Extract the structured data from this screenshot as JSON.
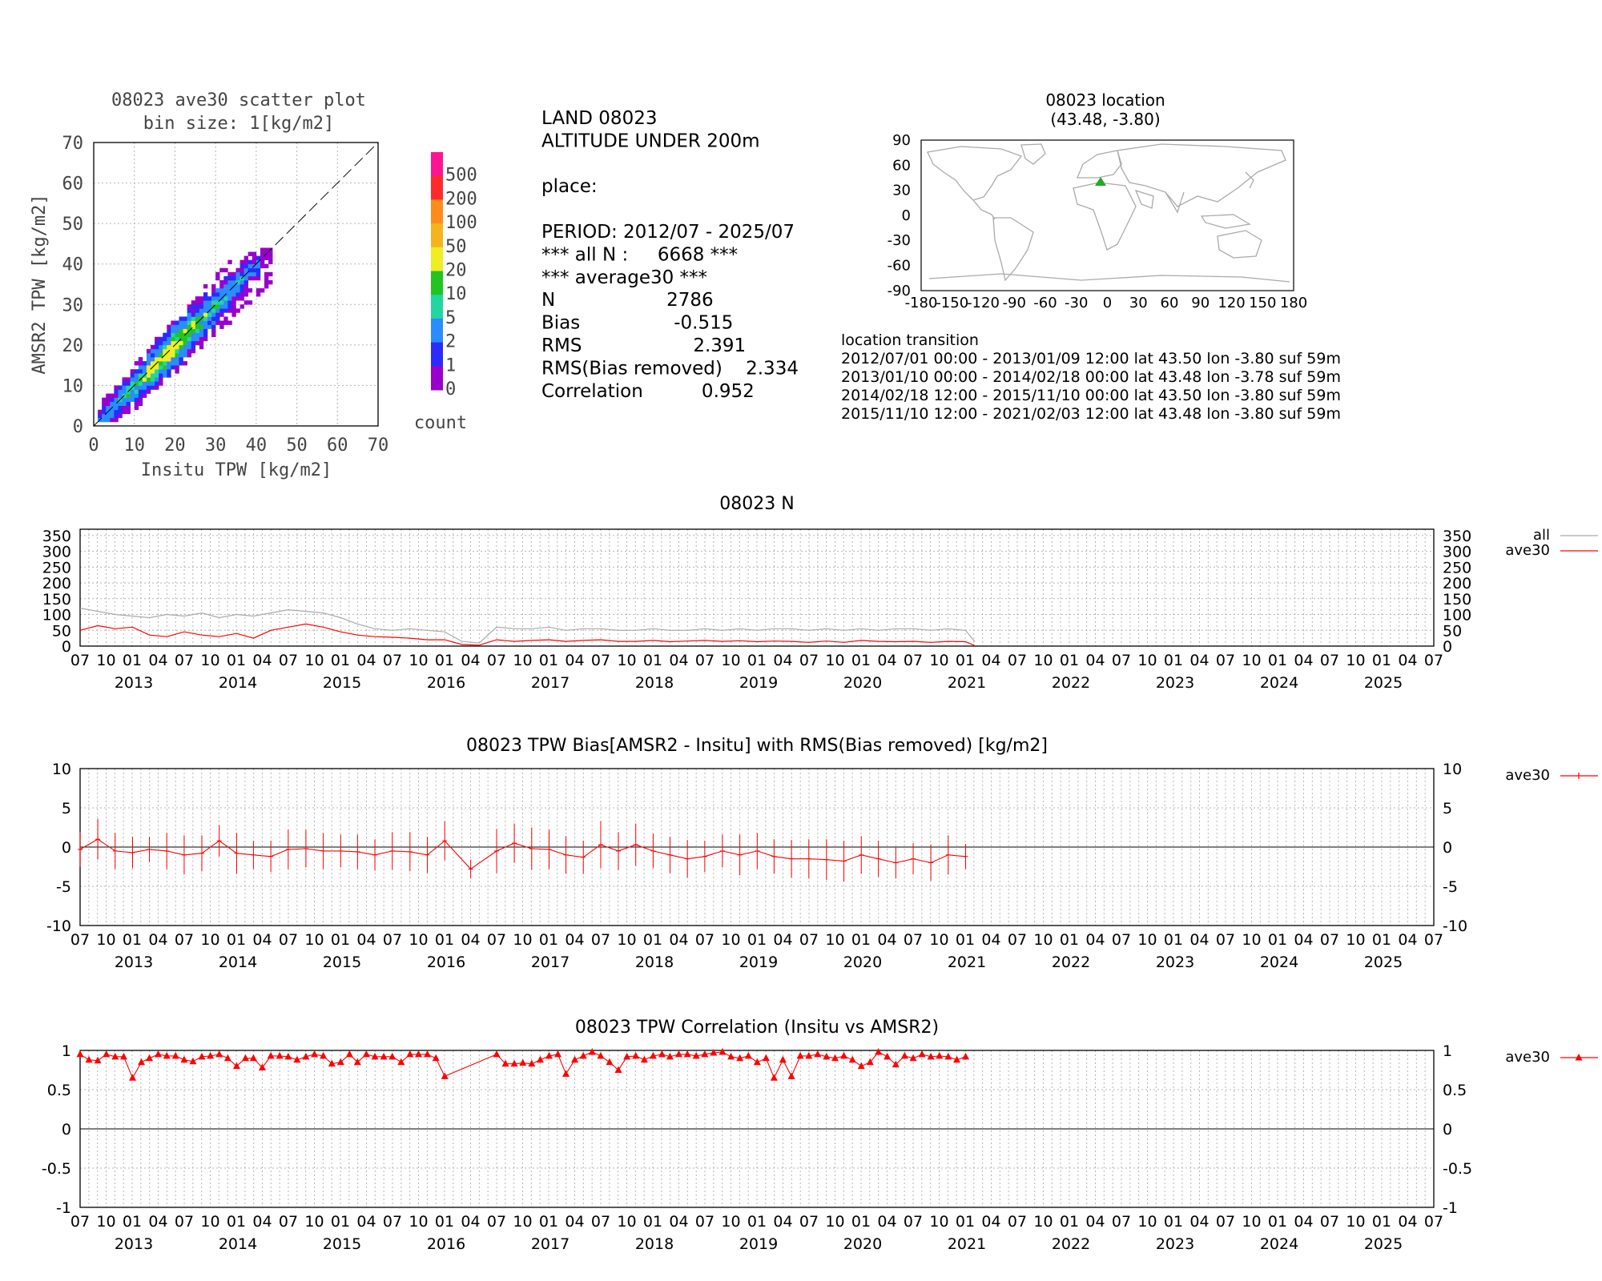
{
  "scatter": {
    "title": [
      "08023 ave30 scatter plot",
      "bin size: 1[kg/m2]"
    ],
    "xlabel": "Insitu TPW [kg/m2]",
    "ylabel": "AMSR2 TPW [kg/m2]",
    "ticks": [
      "0",
      "10",
      "20",
      "30",
      "40",
      "50",
      "60",
      "70"
    ],
    "colorbar": {
      "labels": [
        "500",
        "200",
        "100",
        "50",
        "20",
        "10",
        "5",
        "2",
        "1",
        "0"
      ],
      "colors": [
        "#ff1493",
        "#ff2b2b",
        "#ff8c1a",
        "#f5b41e",
        "#eeee22",
        "#22c422",
        "#22d6a0",
        "#2a8cff",
        "#2b2bff",
        "#9900cc"
      ],
      "title": "count"
    }
  },
  "stats": {
    "lines": [
      "LAND 08023",
      "ALTITUDE UNDER 200m",
      "",
      "place:",
      "",
      "PERIOD: 2012/07 - 2025/07",
      "*** all N :     6668 ***",
      "*** average30 ***",
      "N                   2786",
      "Bias                -0.515",
      "RMS                   2.391",
      "RMS(Bias removed)    2.334",
      "Correlation          0.952"
    ]
  },
  "map": {
    "title": [
      "08023 location",
      "(43.48, -3.80)"
    ],
    "yticks": [
      "90",
      "60",
      "30",
      "0",
      "-30",
      "-60",
      "-90"
    ],
    "xticks": [
      "-180",
      "-150",
      "-120",
      "-90",
      "-60",
      "-30",
      "0",
      "30",
      "60",
      "90",
      "120",
      "150",
      "180"
    ],
    "marker_color": "#22aa22",
    "lat": 43.48,
    "lon": -3.8
  },
  "transition": {
    "title": "location transition",
    "lines": [
      "2012/07/01 00:00 - 2013/01/09 12:00 lat 43.50 lon -3.80 suf 59m",
      "2013/01/10 00:00 - 2014/02/18 00:00 lat 43.48 lon -3.78 suf 59m",
      "2014/02/18 12:00 - 2015/11/10 00:00 lat 43.50 lon -3.80 suf 59m",
      "2015/11/10 12:00 - 2021/02/03 12:00 lat 43.48 lon -3.80 suf 59m"
    ]
  },
  "time_axis": {
    "month_labels": [
      "07",
      "10",
      "01",
      "04",
      "07",
      "10",
      "01",
      "04",
      "07",
      "10",
      "01",
      "04",
      "07",
      "10",
      "01",
      "04",
      "07",
      "10",
      "01",
      "04",
      "07",
      "10",
      "01",
      "04",
      "07",
      "10",
      "01",
      "04",
      "07",
      "10",
      "01",
      "04",
      "07",
      "10",
      "01",
      "04",
      "07",
      "10",
      "01",
      "04",
      "07",
      "10",
      "01",
      "04",
      "07",
      "10",
      "01",
      "04",
      "07",
      "10",
      "01",
      "04",
      "07"
    ],
    "year_labels": [
      "2013",
      "2014",
      "2015",
      "2016",
      "2017",
      "2018",
      "2019",
      "2020",
      "2021",
      "2022",
      "2023",
      "2024",
      "2025"
    ]
  },
  "chart_data": [
    {
      "type": "heatmap",
      "title": "08023 ave30 scatter plot bin size: 1[kg/m2]",
      "xlabel": "Insitu TPW [kg/m2]",
      "ylabel": "AMSR2 TPW [kg/m2]",
      "xlim": [
        0,
        70
      ],
      "ylim": [
        0,
        70
      ],
      "colorbar_levels": [
        0,
        1,
        2,
        5,
        10,
        20,
        50,
        100,
        200,
        500
      ]
    },
    {
      "type": "line",
      "title": "08023 N",
      "ylim": [
        0,
        350
      ],
      "yticks": [
        "350",
        "300",
        "250",
        "200",
        "150",
        "100",
        "50",
        "0"
      ],
      "x_start": "2012-07",
      "x_end": "2025-07",
      "series": [
        {
          "name": "all",
          "color": "#aaaaaa",
          "x": [
            "2012-07",
            "2012-09",
            "2012-11",
            "2013-01",
            "2013-03",
            "2013-05",
            "2013-07",
            "2013-09",
            "2013-11",
            "2014-01",
            "2014-03",
            "2014-05",
            "2014-07",
            "2014-09",
            "2014-11",
            "2015-01",
            "2015-03",
            "2015-05",
            "2015-07",
            "2015-09",
            "2015-11",
            "2016-01",
            "2016-03",
            "2016-05",
            "2016-07",
            "2016-09",
            "2016-11",
            "2017-01",
            "2017-03",
            "2017-05",
            "2017-07",
            "2017-09",
            "2017-11",
            "2018-01",
            "2018-03",
            "2018-05",
            "2018-07",
            "2018-09",
            "2018-11",
            "2019-01",
            "2019-03",
            "2019-05",
            "2019-07",
            "2019-09",
            "2019-11",
            "2020-01",
            "2020-03",
            "2020-05",
            "2020-07",
            "2020-09",
            "2020-11",
            "2021-01",
            "2021-02"
          ],
          "values": [
            120,
            110,
            100,
            95,
            90,
            100,
            95,
            105,
            90,
            100,
            95,
            105,
            115,
            110,
            105,
            90,
            70,
            55,
            50,
            55,
            50,
            45,
            15,
            10,
            60,
            55,
            55,
            60,
            50,
            55,
            55,
            50,
            50,
            55,
            50,
            50,
            55,
            50,
            55,
            50,
            55,
            55,
            50,
            55,
            50,
            55,
            50,
            55,
            55,
            50,
            55,
            50,
            15
          ]
        },
        {
          "name": "ave30",
          "color": "#ff0000",
          "x": [
            "2012-07",
            "2012-09",
            "2012-11",
            "2013-01",
            "2013-03",
            "2013-05",
            "2013-07",
            "2013-09",
            "2013-11",
            "2014-01",
            "2014-03",
            "2014-05",
            "2014-07",
            "2014-09",
            "2014-11",
            "2015-01",
            "2015-03",
            "2015-05",
            "2015-07",
            "2015-09",
            "2015-11",
            "2016-01",
            "2016-03",
            "2016-05",
            "2016-07",
            "2016-09",
            "2016-11",
            "2017-01",
            "2017-03",
            "2017-05",
            "2017-07",
            "2017-09",
            "2017-11",
            "2018-01",
            "2018-03",
            "2018-05",
            "2018-07",
            "2018-09",
            "2018-11",
            "2019-01",
            "2019-03",
            "2019-05",
            "2019-07",
            "2019-09",
            "2019-11",
            "2020-01",
            "2020-03",
            "2020-05",
            "2020-07",
            "2020-09",
            "2020-11",
            "2021-01",
            "2021-02"
          ],
          "values": [
            50,
            65,
            55,
            60,
            35,
            30,
            45,
            35,
            30,
            40,
            25,
            50,
            60,
            70,
            60,
            45,
            35,
            30,
            28,
            25,
            20,
            20,
            5,
            3,
            20,
            15,
            18,
            20,
            15,
            18,
            20,
            15,
            15,
            18,
            14,
            16,
            18,
            15,
            17,
            14,
            16,
            15,
            12,
            16,
            12,
            18,
            15,
            14,
            15,
            12,
            15,
            14,
            2
          ]
        }
      ],
      "legend": "right"
    },
    {
      "type": "line",
      "title": "08023 TPW Bias[AMSR2 - Insitu] with RMS(Bias removed) [kg/m2]",
      "ylim": [
        -10,
        10
      ],
      "yticks": [
        "10",
        "5",
        "0",
        "-5",
        "-10"
      ],
      "series": [
        {
          "name": "ave30",
          "color": "#ff0000",
          "x": [
            "2012-07",
            "2012-09",
            "2012-11",
            "2013-01",
            "2013-03",
            "2013-05",
            "2013-07",
            "2013-09",
            "2013-11",
            "2014-01",
            "2014-03",
            "2014-05",
            "2014-07",
            "2014-09",
            "2014-11",
            "2015-01",
            "2015-03",
            "2015-05",
            "2015-07",
            "2015-09",
            "2015-11",
            "2016-01",
            "2016-04",
            "2016-07",
            "2016-09",
            "2016-11",
            "2017-01",
            "2017-03",
            "2017-05",
            "2017-07",
            "2017-09",
            "2017-11",
            "2018-01",
            "2018-03",
            "2018-05",
            "2018-07",
            "2018-09",
            "2018-11",
            "2019-01",
            "2019-03",
            "2019-05",
            "2019-07",
            "2019-09",
            "2019-11",
            "2020-01",
            "2020-03",
            "2020-05",
            "2020-07",
            "2020-09",
            "2020-11",
            "2021-01"
          ],
          "values": [
            -0.3,
            1.0,
            -0.5,
            -0.7,
            -0.3,
            -0.5,
            -1.0,
            -0.8,
            0.8,
            -0.8,
            -1.0,
            -1.2,
            -0.3,
            -0.2,
            -0.5,
            -0.5,
            -0.6,
            -1.0,
            -0.5,
            -0.6,
            -1.0,
            0.8,
            -2.8,
            -0.5,
            0.5,
            -0.2,
            -0.3,
            -1.0,
            -1.3,
            0.3,
            -0.5,
            0.3,
            -0.5,
            -1.0,
            -1.5,
            -1.2,
            -0.5,
            -1.0,
            -0.5,
            -1.2,
            -1.5,
            -1.5,
            -1.6,
            -1.8,
            -1.0,
            -1.5,
            -2.0,
            -1.5,
            -2.0,
            -1.0,
            -1.2
          ],
          "rms": [
            2.2,
            2.6,
            2.3,
            2.0,
            1.6,
            2.3,
            2.5,
            2.3,
            2.0,
            2.6,
            1.8,
            2.0,
            2.5,
            2.4,
            2.3,
            2.1,
            2.2,
            2.0,
            2.4,
            2.5,
            2.3,
            2.5,
            1.2,
            2.8,
            2.5,
            2.7,
            2.5,
            2.4,
            2.1,
            3.0,
            2.4,
            2.7,
            2.2,
            2.3,
            2.4,
            2.0,
            2.1,
            2.6,
            2.3,
            2.2,
            2.4,
            2.5,
            2.6,
            2.6,
            2.4,
            2.3,
            2.0,
            2.0,
            2.3,
            2.5,
            1.6
          ]
        }
      ],
      "legend": "right"
    },
    {
      "type": "line",
      "title": "08023 TPW Correlation (Insitu vs AMSR2)",
      "ylim": [
        -1,
        1
      ],
      "yticks": [
        "1",
        "0.5",
        "0",
        "-0.5",
        "-1"
      ],
      "series": [
        {
          "name": "ave30",
          "color": "#ff0000",
          "x": [
            "2012-07",
            "2012-08",
            "2012-09",
            "2012-10",
            "2012-11",
            "2012-12",
            "2013-01",
            "2013-02",
            "2013-03",
            "2013-04",
            "2013-05",
            "2013-06",
            "2013-07",
            "2013-08",
            "2013-09",
            "2013-10",
            "2013-11",
            "2013-12",
            "2014-01",
            "2014-02",
            "2014-03",
            "2014-04",
            "2014-05",
            "2014-06",
            "2014-07",
            "2014-08",
            "2014-09",
            "2014-10",
            "2014-11",
            "2014-12",
            "2015-01",
            "2015-02",
            "2015-03",
            "2015-04",
            "2015-05",
            "2015-06",
            "2015-07",
            "2015-08",
            "2015-09",
            "2015-10",
            "2015-11",
            "2015-12",
            "2016-01",
            "2016-07",
            "2016-08",
            "2016-09",
            "2016-10",
            "2016-11",
            "2016-12",
            "2017-01",
            "2017-02",
            "2017-03",
            "2017-04",
            "2017-05",
            "2017-06",
            "2017-07",
            "2017-08",
            "2017-09",
            "2017-10",
            "2017-11",
            "2017-12",
            "2018-01",
            "2018-02",
            "2018-03",
            "2018-04",
            "2018-05",
            "2018-06",
            "2018-07",
            "2018-08",
            "2018-09",
            "2018-10",
            "2018-11",
            "2018-12",
            "2019-01",
            "2019-02",
            "2019-03",
            "2019-04",
            "2019-05",
            "2019-06",
            "2019-07",
            "2019-08",
            "2019-09",
            "2019-10",
            "2019-11",
            "2019-12",
            "2020-01",
            "2020-02",
            "2020-03",
            "2020-04",
            "2020-05",
            "2020-06",
            "2020-07",
            "2020-08",
            "2020-09",
            "2020-10",
            "2020-11",
            "2020-12",
            "2021-01"
          ],
          "values": [
            0.95,
            0.88,
            0.87,
            0.95,
            0.92,
            0.92,
            0.65,
            0.85,
            0.9,
            0.95,
            0.93,
            0.93,
            0.88,
            0.86,
            0.92,
            0.93,
            0.95,
            0.9,
            0.8,
            0.9,
            0.9,
            0.78,
            0.93,
            0.93,
            0.92,
            0.88,
            0.92,
            0.95,
            0.93,
            0.83,
            0.85,
            0.95,
            0.85,
            0.95,
            0.92,
            0.92,
            0.92,
            0.85,
            0.95,
            0.95,
            0.95,
            0.9,
            0.67,
            0.95,
            0.83,
            0.83,
            0.84,
            0.83,
            0.88,
            0.93,
            0.95,
            0.7,
            0.88,
            0.93,
            0.98,
            0.93,
            0.85,
            0.75,
            0.92,
            0.93,
            0.88,
            0.93,
            0.95,
            0.92,
            0.95,
            0.95,
            0.93,
            0.95,
            0.97,
            0.98,
            0.92,
            0.9,
            0.93,
            0.85,
            0.9,
            0.65,
            0.88,
            0.67,
            0.93,
            0.93,
            0.95,
            0.92,
            0.9,
            0.93,
            0.88,
            0.8,
            0.85,
            0.98,
            0.92,
            0.82,
            0.93,
            0.9,
            0.95,
            0.92,
            0.93,
            0.92,
            0.88,
            0.92
          ]
        }
      ],
      "legend": "right"
    }
  ],
  "titles": {
    "n": "08023 N",
    "bias": "08023 TPW Bias[AMSR2 - Insitu] with RMS(Bias removed) [kg/m2]",
    "corr": "08023 TPW Correlation (Insitu vs AMSR2)"
  },
  "legends": {
    "n": [
      "all",
      "ave30"
    ],
    "bias": [
      "ave30"
    ],
    "corr": [
      "ave30"
    ]
  }
}
